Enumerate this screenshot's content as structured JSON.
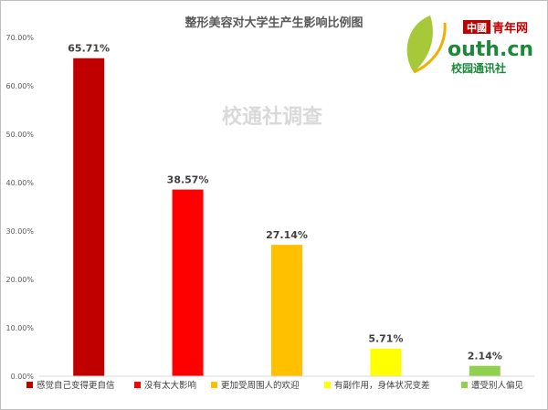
{
  "chart_data": {
    "type": "bar",
    "title": "整形美容对大学生产生影响比例图",
    "categories": [
      "感觉自己变得更自信",
      "没有太大影响",
      "更加受周围人的欢迎",
      "有副作用，身体状况变差",
      "遭受别人偏见"
    ],
    "values": [
      65.71,
      38.57,
      27.14,
      5.71,
      2.14
    ],
    "data_labels": [
      "65.71%",
      "38.57%",
      "27.14%",
      "5.71%",
      "2.14%"
    ],
    "colors": [
      "#c00000",
      "#ff0000",
      "#ffc000",
      "#ffff00",
      "#92d050"
    ],
    "ylim": [
      0,
      70
    ],
    "yticks": [
      0,
      10,
      20,
      30,
      40,
      50,
      60,
      70
    ],
    "ytick_labels": [
      "0.00%",
      "10.00%",
      "20.00%",
      "30.00%",
      "40.00%",
      "50.00%",
      "60.00%",
      "70.00%"
    ],
    "grid": false,
    "legend_position": "bottom",
    "xlabel": "",
    "ylabel": ""
  },
  "watermark": "校通社调查",
  "logo": {
    "cn_badge": "中國",
    "cn_name": "青年网",
    "domain": "outh.cn",
    "tagline": "校园通讯社"
  }
}
